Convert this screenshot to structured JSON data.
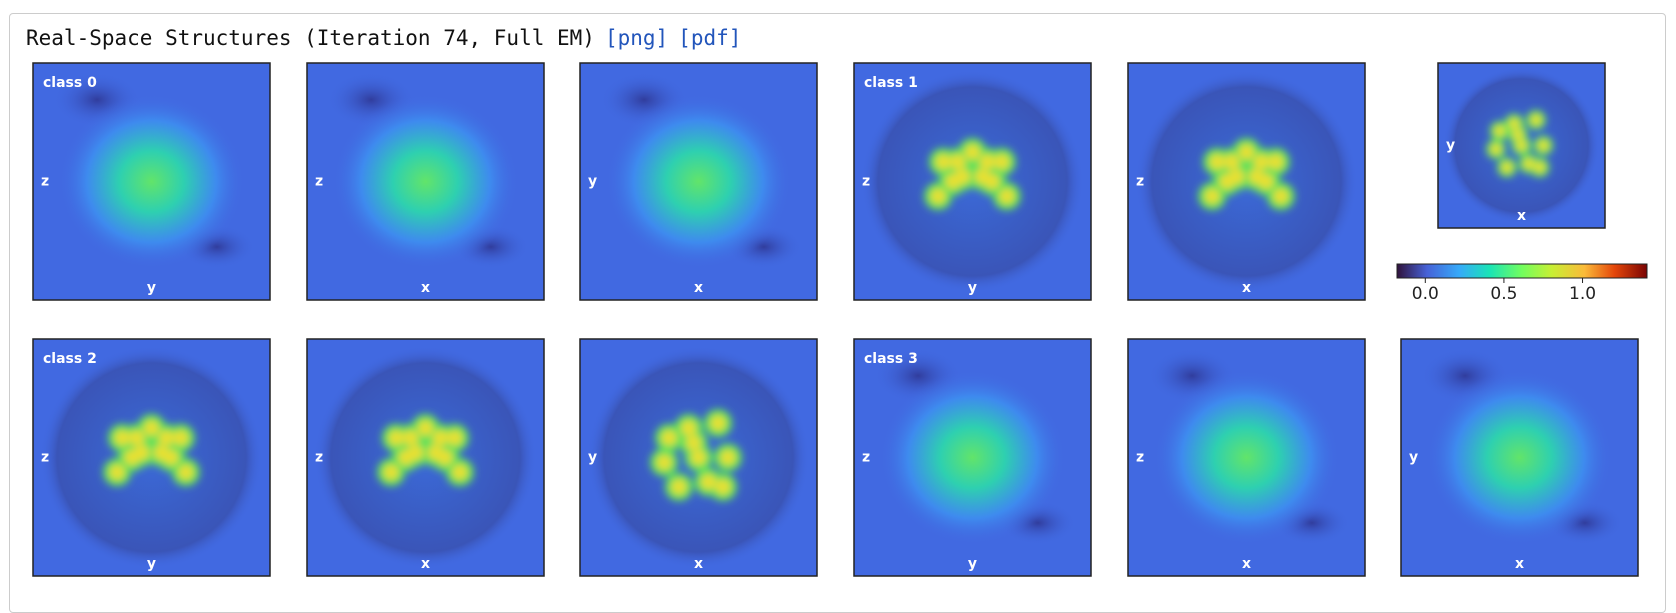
{
  "header": {
    "title": "Real-Space Structures (Iteration 74, Full EM)",
    "links": [
      "[png]",
      "[pdf]"
    ]
  },
  "panels": [
    {
      "class_label": "class 0",
      "left_label": "z",
      "bottom_label": "y"
    },
    {
      "left_label": "z",
      "bottom_label": "x"
    },
    {
      "left_label": "y",
      "bottom_label": "x"
    },
    {
      "class_label": "class 1",
      "left_label": "z",
      "bottom_label": "y"
    },
    {
      "left_label": "z",
      "bottom_label": "x"
    },
    {
      "left_label": "y",
      "bottom_label": "x"
    },
    {
      "class_label": "class 2",
      "left_label": "z",
      "bottom_label": "y"
    },
    {
      "left_label": "z",
      "bottom_label": "x"
    },
    {
      "left_label": "y",
      "bottom_label": "x"
    },
    {
      "class_label": "class 3",
      "left_label": "z",
      "bottom_label": "y"
    },
    {
      "left_label": "z",
      "bottom_label": "x"
    },
    {
      "left_label": "y",
      "bottom_label": "x"
    }
  ],
  "colorbar": {
    "lim": [
      -0.18,
      1.41
    ],
    "ticks": [
      {
        "value": 0,
        "label": "0.0"
      },
      {
        "value": 0.5,
        "label": "0.5"
      },
      {
        "value": 1,
        "label": "1.0"
      }
    ]
  }
}
